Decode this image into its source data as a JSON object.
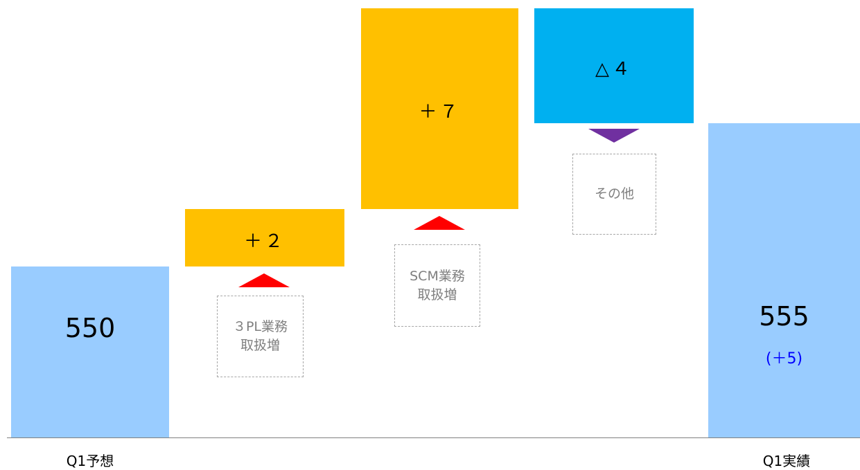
{
  "chart_data": {
    "type": "waterfall",
    "start": {
      "category": "Q1予想",
      "value": 550,
      "label": "550"
    },
    "steps": [
      {
        "value": 2,
        "label": "＋２",
        "note": "３PL業務\n取扱増",
        "direction": "up",
        "color": "#FFC000",
        "arrow_color": "#FF0000"
      },
      {
        "value": 7,
        "label": "＋７",
        "note": "SCM業務\n取扱増",
        "direction": "up",
        "color": "#FFC000",
        "arrow_color": "#FF0000"
      },
      {
        "value": -4,
        "label": "△４",
        "note": "その他",
        "direction": "down",
        "color": "#00B0F0",
        "arrow_color": "#7030A0"
      }
    ],
    "end": {
      "category": "Q1実績",
      "value": 555,
      "label": "555",
      "delta_label": "(＋5)"
    },
    "total_bar_color": "#99CCFF",
    "delta_label_color": "#0000FF"
  }
}
